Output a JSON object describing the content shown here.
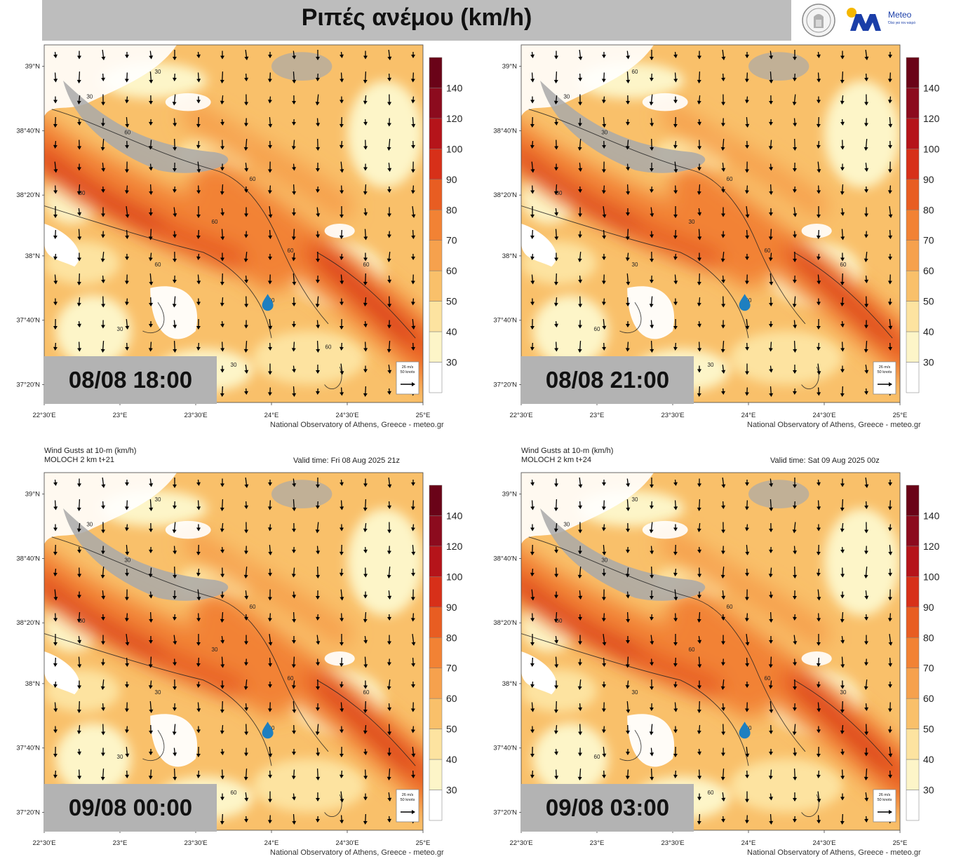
{
  "header": {
    "title": "Ριπές ανέμου (km/h)",
    "logo_text": "Meteo",
    "logo_subtext": "Όλα για τον καιρό"
  },
  "colors": {
    "land_gray": "#a9a9a9",
    "water_white": "#ffffff",
    "scale": [
      "#ffffff",
      "#fdf5c8",
      "#fde3a0",
      "#f9c06a",
      "#f6a14d",
      "#f28234",
      "#e85d22",
      "#d73019",
      "#b5141a",
      "#8c0b1e",
      "#6a0318"
    ]
  },
  "legend": {
    "ticks": [
      "140",
      "120",
      "100",
      "90",
      "80",
      "70",
      "60",
      "50",
      "40",
      "30"
    ],
    "vector_ref": "26 m/s\n50 knots"
  },
  "axes": {
    "lat_labels": [
      "39°N",
      "38°40'N",
      "38°20'N",
      "38°N",
      "37°40'N",
      "37°20'N"
    ],
    "lon_labels": [
      "22°30'E",
      "23°E",
      "23°30'E",
      "24°E",
      "24°30'E",
      "25°E"
    ]
  },
  "credit": "National Observatory of Athens, Greece - meteo.gr",
  "panels": [
    {
      "timestamp": "08/08 18:00",
      "show_header": false,
      "show_lon": true,
      "show_credit": true,
      "band_strength": 1.0,
      "contours": [
        "30",
        "30",
        "60",
        "60",
        "60",
        "60",
        "30",
        "60",
        "60",
        "60",
        "30",
        "30",
        "60"
      ]
    },
    {
      "timestamp": "08/08 21:00",
      "show_header": false,
      "show_lon": true,
      "show_credit": true,
      "band_strength": 0.85,
      "contours": [
        "30",
        "60",
        "30",
        "60",
        "30",
        "60",
        "30",
        "30",
        "60",
        "60",
        "60",
        "30"
      ]
    },
    {
      "timestamp": "09/08 00:00",
      "show_header": true,
      "header_line1": "Wind Gusts at 10-m (km/h)",
      "header_line2": "MOLOCH 2 km t+21",
      "valid_time": "Valid time: Fri 08 Aug 2025 21z",
      "show_lon": true,
      "show_credit": true,
      "band_strength": 0.9,
      "contours": [
        "30",
        "30",
        "30",
        "60",
        "30",
        "60",
        "60",
        "30",
        "60",
        "60",
        "30",
        "60"
      ]
    },
    {
      "timestamp": "09/08 03:00",
      "show_header": true,
      "header_line1": "Wind Gusts at 10-m (km/h)",
      "header_line2": "MOLOCH 2 km t+24",
      "valid_time": "Valid time: Sat 09 Aug 2025 00z",
      "show_lon": true,
      "show_credit": true,
      "band_strength": 0.95,
      "contours": [
        "30",
        "30",
        "30",
        "60",
        "60",
        "60",
        "60",
        "30",
        "60",
        "30",
        "60",
        "60"
      ]
    }
  ]
}
